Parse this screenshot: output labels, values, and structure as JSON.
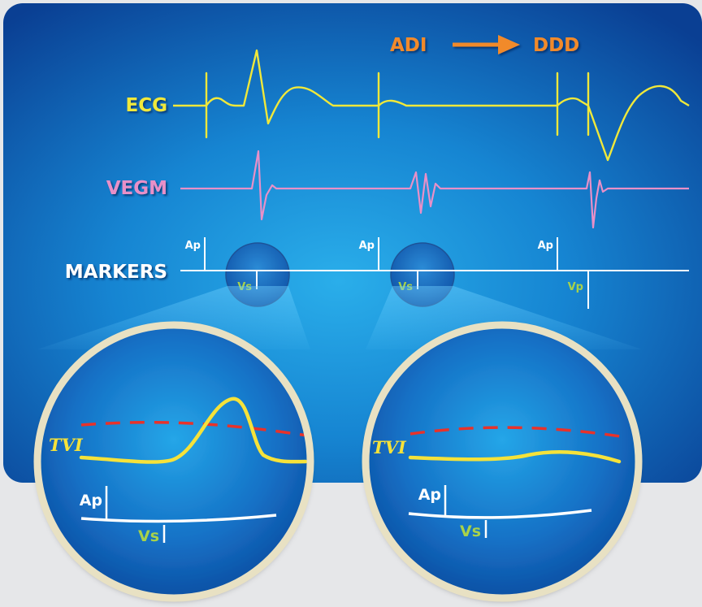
{
  "header": {
    "from_mode": "ADI",
    "to_mode": "DDD"
  },
  "traces": {
    "ecg": {
      "label": "ECG"
    },
    "vegm": {
      "label": "VEGM"
    },
    "markers": {
      "label": "MARKERS"
    }
  },
  "markers": [
    {
      "atrial": "Ap",
      "ventricular": "Vs"
    },
    {
      "atrial": "Ap",
      "ventricular": "Vs"
    },
    {
      "atrial": "Ap",
      "ventricular": "Vp"
    }
  ],
  "magnifiers": [
    {
      "signal": "TVI",
      "atrial": "Ap",
      "ventricular": "Vs"
    },
    {
      "signal": "TVI",
      "atrial": "Ap",
      "ventricular": "Vs"
    }
  ],
  "colors": {
    "panel_light": "#20a0e4",
    "panel_dark": "#0a3f93",
    "ecg": "#f0e83a",
    "vegm": "#e890c8",
    "markers": "#ffffff",
    "vs_label": "#a8d24a",
    "header": "#f18a2b",
    "threshold": "#e8322a",
    "tvi": "#f5e23a",
    "lens_rim": "#e8e1c3"
  }
}
